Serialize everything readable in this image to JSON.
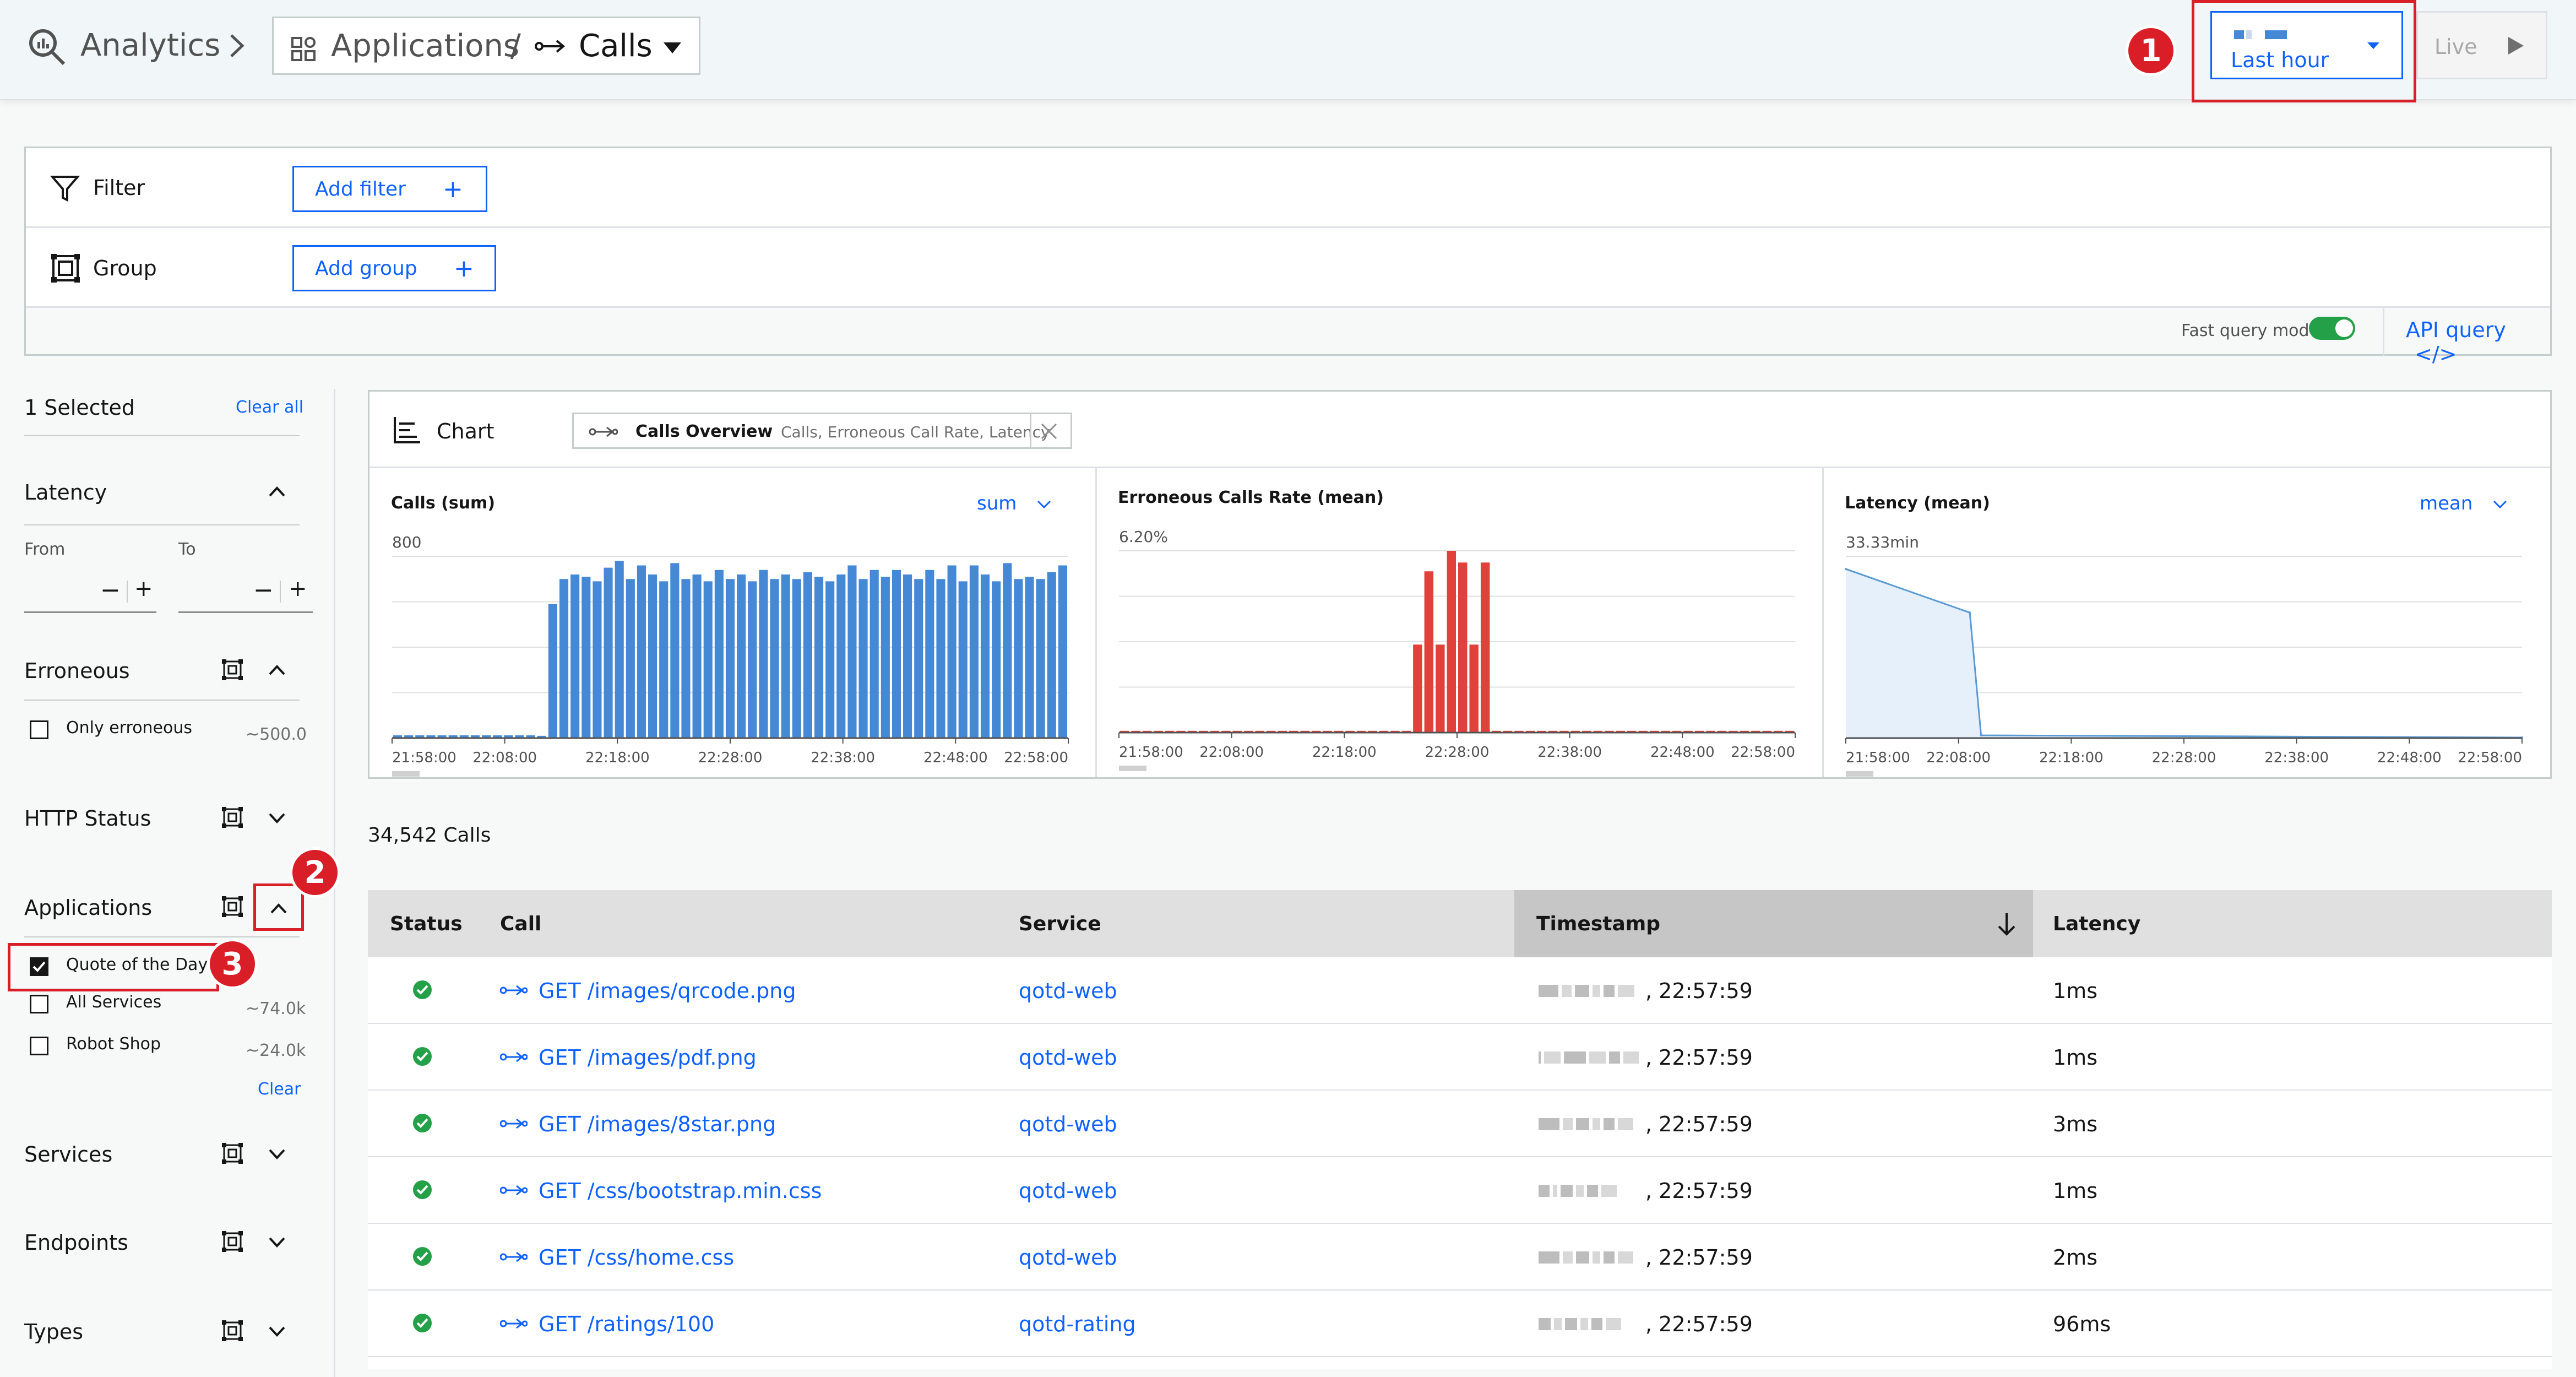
{
  "header": {
    "analytics_label": "Analytics",
    "app_label": "Applications",
    "separator": "/",
    "calls_label": "Calls",
    "time_range": "Last hour",
    "live_label": "Live"
  },
  "callouts": [
    "1",
    "2",
    "3"
  ],
  "filter_panel": {
    "filter_label": "Filter",
    "add_filter": "Add filter",
    "group_label": "Group",
    "add_group": "Add group",
    "fast_query": "Fast query mode",
    "api_query": "API query"
  },
  "sidebar": {
    "selected": "1 Selected",
    "clear_all": "Clear all",
    "latency": {
      "title": "Latency",
      "from": "From",
      "to": "To"
    },
    "erroneous": {
      "title": "Erroneous",
      "only_label": "Only erroneous",
      "only_count": "~500.0"
    },
    "http_status": "HTTP Status",
    "applications": {
      "title": "Applications",
      "items": [
        {
          "label": "Quote of the Day",
          "count": "",
          "checked": true
        },
        {
          "label": "All Services",
          "count": "~74.0k",
          "checked": false
        },
        {
          "label": "Robot Shop",
          "count": "~24.0k",
          "checked": false
        }
      ],
      "clear": "Clear"
    },
    "services": "Services",
    "endpoints": "Endpoints",
    "types": "Types"
  },
  "chart_panel": {
    "chart_label": "Chart",
    "overview_title": "Calls Overview",
    "overview_sub": "Calls, Erroneous Call Rate, Latency"
  },
  "chart_data": [
    {
      "type": "bar",
      "title": "Calls (sum)",
      "aggregation": "sum",
      "ytick": "800",
      "color": "#4589d6",
      "ylim": [
        0,
        800
      ],
      "xticks": [
        "21:58:00",
        "22:08:00",
        "22:18:00",
        "22:28:00",
        "22:38:00",
        "22:48:00",
        "22:58:00"
      ],
      "values": [
        12,
        12,
        12,
        12,
        12,
        12,
        12,
        12,
        12,
        12,
        12,
        12,
        12,
        10,
        590,
        700,
        720,
        710,
        690,
        750,
        780,
        700,
        760,
        720,
        690,
        770,
        700,
        720,
        690,
        740,
        700,
        720,
        690,
        740,
        700,
        720,
        700,
        730,
        710,
        690,
        720,
        760,
        700,
        740,
        710,
        740,
        720,
        700,
        740,
        700,
        760,
        690,
        760,
        720,
        690,
        770,
        700,
        710,
        700,
        730,
        760
      ]
    },
    {
      "type": "bar",
      "title": "Erroneous Calls Rate (mean)",
      "aggregation": "",
      "ytick": "6.20%",
      "color": "#e0413b",
      "ylim": [
        0,
        6.2
      ],
      "xticks": [
        "21:58:00",
        "22:08:00",
        "22:18:00",
        "22:28:00",
        "22:38:00",
        "22:48:00",
        "22:58:00"
      ],
      "values": [
        0.06,
        0.06,
        0.06,
        0.06,
        0.06,
        0.06,
        0.06,
        0.06,
        0.06,
        0.06,
        0.06,
        0.06,
        0.06,
        0.06,
        0.06,
        0.06,
        0.06,
        0.06,
        0.06,
        0.06,
        0.06,
        0.06,
        0.06,
        0.06,
        0.06,
        0.06,
        3.0,
        5.5,
        3.0,
        6.2,
        5.8,
        3.0,
        5.8,
        0.06,
        0.06,
        0.06,
        0.06,
        0.06,
        0.06,
        0.06,
        0.06,
        0.06,
        0.06,
        0.06,
        0.06,
        0.06,
        0.06,
        0.06,
        0.06,
        0.06,
        0.06,
        0.06,
        0.06,
        0.06,
        0.06,
        0.06,
        0.06,
        0.06,
        0.06,
        0.06
      ]
    },
    {
      "type": "area",
      "title": "Latency (mean)",
      "aggregation": "mean",
      "ytick": "33.33min",
      "color": "#5a9bd5",
      "ylim": [
        0,
        33.33
      ],
      "xticks": [
        "21:58:00",
        "22:08:00",
        "22:18:00",
        "22:28:00",
        "22:38:00",
        "22:48:00",
        "22:58:00"
      ],
      "x_minutes": [
        0,
        11,
        12,
        60
      ],
      "values": [
        31,
        23,
        0.5,
        0.1
      ]
    }
  ],
  "table": {
    "count_label": "34,542 Calls",
    "headers": [
      "Status",
      "Call",
      "Service",
      "Timestamp",
      "Latency"
    ],
    "rows": [
      {
        "call": "GET /images/qrcode.png",
        "service": "qotd-web",
        "time": ", 22:57:59",
        "latency": "1ms"
      },
      {
        "call": "GET /images/pdf.png",
        "service": "qotd-web",
        "time": ", 22:57:59",
        "latency": "1ms"
      },
      {
        "call": "GET /images/8star.png",
        "service": "qotd-web",
        "time": ", 22:57:59",
        "latency": "3ms"
      },
      {
        "call": "GET /css/bootstrap.min.css",
        "service": "qotd-web",
        "time": ", 22:57:59",
        "latency": "1ms"
      },
      {
        "call": "GET /css/home.css",
        "service": "qotd-web",
        "time": ", 22:57:59",
        "latency": "2ms"
      },
      {
        "call": "GET /ratings/100",
        "service": "qotd-rating",
        "time": ", 22:57:59",
        "latency": "96ms"
      }
    ]
  }
}
